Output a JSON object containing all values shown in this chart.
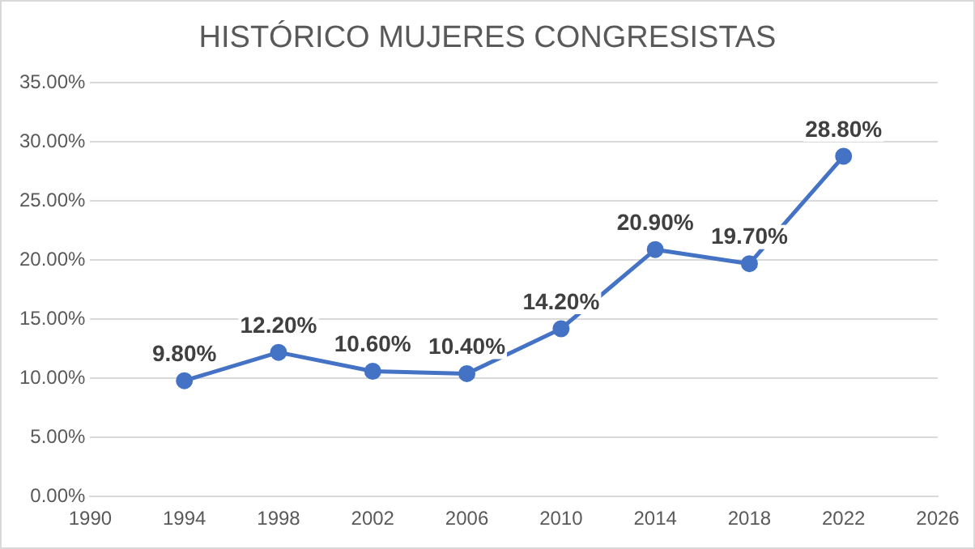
{
  "chart_data": {
    "type": "line",
    "title": "HISTÓRICO MUJERES CONGRESISTAS",
    "x": [
      1994,
      1998,
      2002,
      2006,
      2010,
      2014,
      2018,
      2022
    ],
    "series": [
      {
        "color": "#4472c4",
        "values": [
          9.8,
          12.2,
          10.6,
          10.4,
          14.2,
          20.9,
          19.7,
          28.8
        ],
        "value_labels": [
          "9.80%",
          "12.20%",
          "10.60%",
          "10.40%",
          "14.20%",
          "20.90%",
          "19.70%",
          "28.80%"
        ]
      }
    ],
    "xlim": [
      1990,
      2026
    ],
    "xticks": [
      1990,
      1994,
      1998,
      2002,
      2006,
      2010,
      2014,
      2018,
      2022,
      2026
    ],
    "ylim": [
      0,
      35
    ],
    "yticks": [
      {
        "value": 0,
        "label": "0.00%"
      },
      {
        "value": 5,
        "label": "5.00%"
      },
      {
        "value": 10,
        "label": "10.00%"
      },
      {
        "value": 15,
        "label": "15.00%"
      },
      {
        "value": 20,
        "label": "20.00%"
      },
      {
        "value": 25,
        "label": "25.00%"
      },
      {
        "value": 30,
        "label": "30.00%"
      },
      {
        "value": 35,
        "label": "35.00%"
      }
    ],
    "grid": "y",
    "legend": false,
    "marker": "circle",
    "line_style": "solid"
  }
}
